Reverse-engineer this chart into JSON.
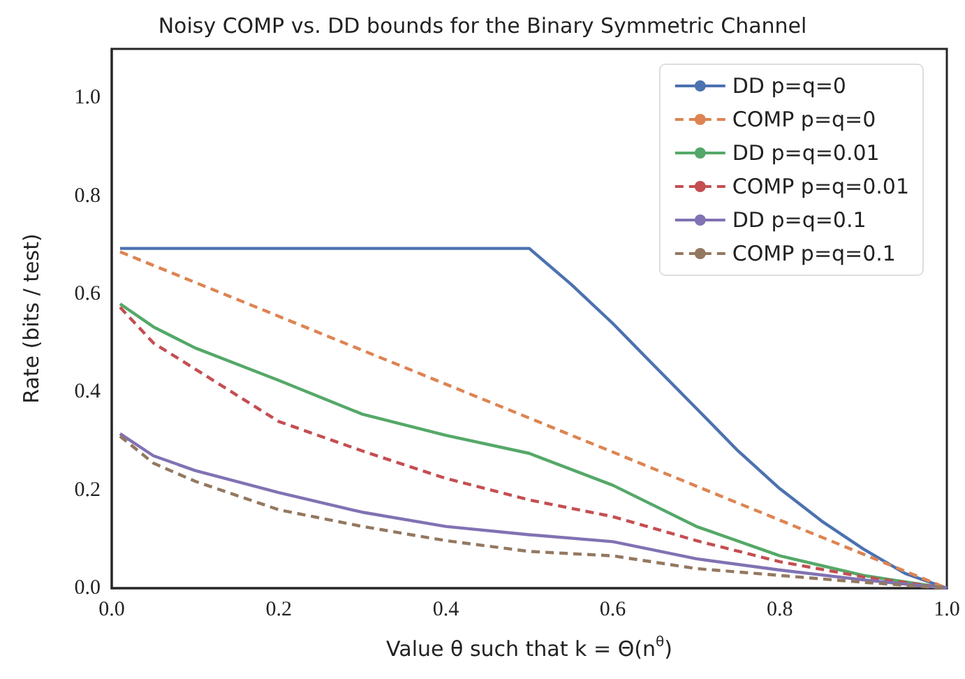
{
  "chart_data": {
    "type": "line",
    "title": "Noisy COMP vs. DD bounds for the Binary Symmetric Channel",
    "xlabel": "Value θ such that k = Θ(n$^{θ}$)",
    "ylabel": "Rate (bits / test)",
    "xlim": [
      0,
      1
    ],
    "ylim": [
      0,
      1.1
    ],
    "xticks": [
      {
        "value": 0,
        "label": "0.0"
      },
      0.2,
      0.4,
      0.6,
      0.8,
      {
        "value": 1,
        "label": "1.0"
      }
    ],
    "yticks": [
      {
        "value": 0,
        "label": "0.0"
      },
      0.2,
      0.4,
      0.6,
      0.8,
      {
        "value": 1,
        "label": "1.0"
      }
    ],
    "grid": false,
    "legend": "top right",
    "marker": "none",
    "series": [
      {
        "name": "DD p=q=0",
        "color": "#4c72b0",
        "line_style": "solid",
        "x": [
          0.01,
          0.5,
          0.55,
          0.6,
          0.65,
          0.7,
          0.75,
          0.8,
          0.85,
          0.9,
          0.95,
          1.0
        ],
        "values": [
          0.693,
          0.693,
          0.62,
          0.54,
          0.453,
          0.367,
          0.28,
          0.203,
          0.137,
          0.08,
          0.03,
          0
        ]
      },
      {
        "name": "COMP p=q=0",
        "color": "#dd8452",
        "line_style": "dashed",
        "x": [
          0.01,
          0.5,
          1.0
        ],
        "values": [
          0.686,
          0.347,
          0
        ]
      },
      {
        "name": "DD p=q=0.01",
        "color": "#55a868",
        "line_style": "solid",
        "x": [
          0.01,
          0.05,
          0.1,
          0.2,
          0.3,
          0.4,
          0.5,
          0.6,
          0.7,
          0.8,
          0.9,
          1.0
        ],
        "values": [
          0.58,
          0.533,
          0.49,
          0.424,
          0.355,
          0.312,
          0.275,
          0.21,
          0.126,
          0.066,
          0.026,
          0
        ]
      },
      {
        "name": "COMP p=q=0.01",
        "color": "#c44e52",
        "line_style": "dashed",
        "x": [
          0.01,
          0.05,
          0.1,
          0.2,
          0.3,
          0.4,
          0.5,
          0.6,
          0.7,
          0.8,
          0.9,
          1.0
        ],
        "values": [
          0.573,
          0.5,
          0.447,
          0.34,
          0.28,
          0.224,
          0.18,
          0.146,
          0.097,
          0.054,
          0.023,
          0
        ]
      },
      {
        "name": "DD p=q=0.1",
        "color": "#8172b3",
        "line_style": "solid",
        "x": [
          0.01,
          0.05,
          0.1,
          0.2,
          0.3,
          0.4,
          0.5,
          0.6,
          0.7,
          0.8,
          0.9,
          1.0
        ],
        "values": [
          0.315,
          0.27,
          0.24,
          0.195,
          0.155,
          0.126,
          0.109,
          0.095,
          0.06,
          0.037,
          0.017,
          0
        ]
      },
      {
        "name": "COMP p=q=0.1",
        "color": "#937860",
        "line_style": "dashed",
        "x": [
          0.01,
          0.05,
          0.1,
          0.2,
          0.3,
          0.4,
          0.5,
          0.6,
          0.7,
          0.8,
          0.9,
          1.0
        ],
        "values": [
          0.31,
          0.255,
          0.218,
          0.16,
          0.126,
          0.097,
          0.075,
          0.066,
          0.04,
          0.026,
          0.012,
          0
        ]
      }
    ]
  }
}
